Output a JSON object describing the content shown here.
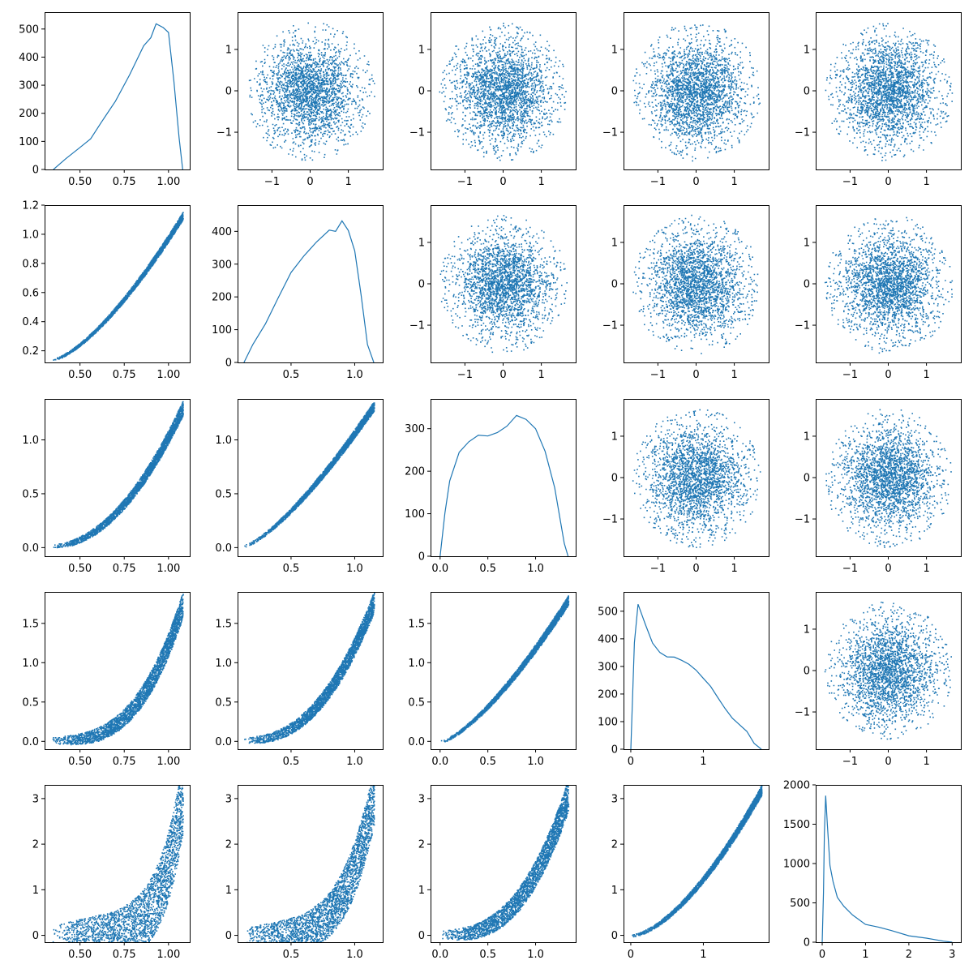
{
  "figure": {
    "layout": "5x5 pair plot grid (lower triangle: scatter, diagonal: histogram, upper triangle: scatter)",
    "color": "#1f77b4"
  },
  "chart_data": [
    {
      "name": "panel-r1c1",
      "type": "line",
      "role": "histogram",
      "xlim": [
        0.3,
        1.12
      ],
      "ylim": [
        0,
        560
      ],
      "xticks": [
        0.5,
        0.75,
        1.0
      ],
      "xtick_labels": [
        "0.50",
        "0.75",
        "1.00"
      ],
      "yticks": [
        0,
        100,
        200,
        300,
        400,
        500
      ],
      "ytick_labels": [
        "0",
        "100",
        "200",
        "300",
        "400",
        "500"
      ],
      "x": [
        0.35,
        0.42,
        0.5,
        0.56,
        0.62,
        0.7,
        0.78,
        0.86,
        0.9,
        0.93,
        0.97,
        1.0,
        1.03,
        1.06,
        1.08
      ],
      "y": [
        0,
        30,
        70,
        110,
        170,
        250,
        330,
        440,
        470,
        520,
        510,
        480,
        320,
        120,
        0
      ]
    },
    {
      "name": "panel-r1c2",
      "type": "scatter",
      "role": "disk",
      "xlim": [
        -1.9,
        1.9
      ],
      "ylim": [
        -1.9,
        1.9
      ],
      "xticks": [
        -1,
        0,
        1
      ],
      "xtick_labels": [
        "−1",
        "0",
        "1"
      ],
      "yticks": [
        -1,
        0,
        1
      ],
      "ytick_labels": [
        "−1",
        "0",
        "1"
      ]
    },
    {
      "name": "panel-r1c3",
      "type": "scatter",
      "role": "disk",
      "xlim": [
        -1.9,
        1.9
      ],
      "ylim": [
        -1.9,
        1.9
      ],
      "xticks": [
        -1,
        0,
        1
      ],
      "xtick_labels": [
        "−1",
        "0",
        "1"
      ],
      "yticks": [
        -1,
        0,
        1
      ],
      "ytick_labels": [
        "−1",
        "0",
        "1"
      ]
    },
    {
      "name": "panel-r1c4",
      "type": "scatter",
      "role": "disk",
      "xlim": [
        -1.9,
        1.9
      ],
      "ylim": [
        -1.9,
        1.9
      ],
      "xticks": [
        -1,
        0,
        1
      ],
      "xtick_labels": [
        "−1",
        "0",
        "1"
      ],
      "yticks": [
        -1,
        0,
        1
      ],
      "ytick_labels": [
        "−1",
        "0",
        "1"
      ]
    },
    {
      "name": "panel-r1c5",
      "type": "scatter",
      "role": "disk",
      "xlim": [
        -1.9,
        1.9
      ],
      "ylim": [
        -1.9,
        1.9
      ],
      "xticks": [
        -1,
        0,
        1
      ],
      "xtick_labels": [
        "−1",
        "0",
        "1"
      ],
      "yticks": [
        -1,
        0,
        1
      ],
      "ytick_labels": [
        "−1",
        "0",
        "1"
      ]
    },
    {
      "name": "panel-r2c1",
      "type": "scatter",
      "role": "band",
      "xlim": [
        0.3,
        1.12
      ],
      "ylim": [
        0.12,
        1.2
      ],
      "xticks": [
        0.5,
        0.75,
        1.0
      ],
      "xtick_labels": [
        "0.50",
        "0.75",
        "1.00"
      ],
      "yticks": [
        0.2,
        0.4,
        0.6,
        0.8,
        1.0,
        1.2
      ],
      "ytick_labels": [
        "0.2",
        "0.4",
        "0.6",
        "0.8",
        "1.0",
        "1.2"
      ],
      "band": {
        "x0": 0.34,
        "x1": 1.08,
        "y0": 0.14,
        "y1": 1.13,
        "p": 1.45,
        "w": 0.07
      }
    },
    {
      "name": "panel-r2c2",
      "type": "line",
      "role": "histogram",
      "xlim": [
        0.08,
        1.22
      ],
      "ylim": [
        0,
        480
      ],
      "xticks": [
        0.5,
        1.0
      ],
      "xtick_labels": [
        "0.5",
        "1.0"
      ],
      "yticks": [
        0,
        100,
        200,
        300,
        400
      ],
      "ytick_labels": [
        "0",
        "100",
        "200",
        "300",
        "400"
      ],
      "x": [
        0.13,
        0.2,
        0.3,
        0.4,
        0.5,
        0.6,
        0.7,
        0.8,
        0.85,
        0.9,
        0.95,
        1.0,
        1.05,
        1.1,
        1.15
      ],
      "y": [
        0,
        50,
        120,
        200,
        270,
        320,
        370,
        410,
        400,
        430,
        400,
        340,
        200,
        60,
        0
      ]
    },
    {
      "name": "panel-r2c3",
      "type": "scatter",
      "role": "disk",
      "xlim": [
        -1.9,
        1.9
      ],
      "ylim": [
        -1.9,
        1.9
      ],
      "xticks": [
        -1,
        0,
        1
      ],
      "xtick_labels": [
        "−1",
        "0",
        "1"
      ],
      "yticks": [
        -1,
        0,
        1
      ],
      "ytick_labels": [
        "−1",
        "0",
        "1"
      ]
    },
    {
      "name": "panel-r2c4",
      "type": "scatter",
      "role": "disk",
      "xlim": [
        -1.9,
        1.9
      ],
      "ylim": [
        -1.9,
        1.9
      ],
      "xticks": [
        -1,
        0,
        1
      ],
      "xtick_labels": [
        "−1",
        "0",
        "1"
      ],
      "yticks": [
        -1,
        0,
        1
      ],
      "ytick_labels": [
        "−1",
        "0",
        "1"
      ]
    },
    {
      "name": "panel-r2c5",
      "type": "scatter",
      "role": "disk",
      "xlim": [
        -1.9,
        1.9
      ],
      "ylim": [
        -1.9,
        1.9
      ],
      "xticks": [
        -1,
        0,
        1
      ],
      "xtick_labels": [
        "−1",
        "0",
        "1"
      ],
      "yticks": [
        -1,
        0,
        1
      ],
      "ytick_labels": [
        "−1",
        "0",
        "1"
      ]
    },
    {
      "name": "panel-r3c1",
      "type": "scatter",
      "role": "band",
      "xlim": [
        0.3,
        1.12
      ],
      "ylim": [
        -0.08,
        1.38
      ],
      "xticks": [
        0.5,
        0.75,
        1.0
      ],
      "xtick_labels": [
        "0.50",
        "0.75",
        "1.00"
      ],
      "yticks": [
        0,
        0.5,
        1.0
      ],
      "ytick_labels": [
        "0.0",
        "0.5",
        "1.0"
      ],
      "band": {
        "x0": 0.34,
        "x1": 1.08,
        "y0": 0.02,
        "y1": 1.3,
        "p": 2.0,
        "w": 0.14
      }
    },
    {
      "name": "panel-r3c2",
      "type": "scatter",
      "role": "band",
      "xlim": [
        0.08,
        1.22
      ],
      "ylim": [
        -0.08,
        1.38
      ],
      "xticks": [
        0.5,
        1.0
      ],
      "xtick_labels": [
        "0.5",
        "1.0"
      ],
      "yticks": [
        0,
        0.5,
        1.0
      ],
      "ytick_labels": [
        "0.0",
        "0.5",
        "1.0"
      ],
      "band": {
        "x0": 0.13,
        "x1": 1.15,
        "y0": 0.02,
        "y1": 1.32,
        "p": 1.35,
        "w": 0.09
      }
    },
    {
      "name": "panel-r3c3",
      "type": "line",
      "role": "histogram",
      "xlim": [
        -0.1,
        1.42
      ],
      "ylim": [
        0,
        370
      ],
      "xticks": [
        0,
        0.5,
        1.0
      ],
      "xtick_labels": [
        "0.0",
        "0.5",
        "1.0"
      ],
      "yticks": [
        0,
        100,
        200,
        300
      ],
      "ytick_labels": [
        "0",
        "100",
        "200",
        "300"
      ],
      "x": [
        0.0,
        0.05,
        0.1,
        0.2,
        0.3,
        0.4,
        0.5,
        0.6,
        0.7,
        0.8,
        0.9,
        1.0,
        1.1,
        1.2,
        1.3,
        1.34
      ],
      "y": [
        0,
        100,
        180,
        240,
        270,
        280,
        285,
        290,
        310,
        330,
        320,
        300,
        250,
        160,
        30,
        0
      ]
    },
    {
      "name": "panel-r3c4",
      "type": "scatter",
      "role": "disk",
      "xlim": [
        -1.9,
        1.9
      ],
      "ylim": [
        -1.9,
        1.9
      ],
      "xticks": [
        -1,
        0,
        1
      ],
      "xtick_labels": [
        "−1",
        "0",
        "1"
      ],
      "yticks": [
        -1,
        0,
        1
      ],
      "ytick_labels": [
        "−1",
        "0",
        "1"
      ]
    },
    {
      "name": "panel-r3c5",
      "type": "scatter",
      "role": "disk",
      "xlim": [
        -1.9,
        1.9
      ],
      "ylim": [
        -1.9,
        1.9
      ],
      "xticks": [
        -1,
        0,
        1
      ],
      "xtick_labels": [
        "−1",
        "0",
        "1"
      ],
      "yticks": [
        -1,
        0,
        1
      ],
      "ytick_labels": [
        "−1",
        "0",
        "1"
      ]
    },
    {
      "name": "panel-r4c1",
      "type": "scatter",
      "role": "band",
      "xlim": [
        0.3,
        1.12
      ],
      "ylim": [
        -0.1,
        1.9
      ],
      "xticks": [
        0.5,
        0.75,
        1.0
      ],
      "xtick_labels": [
        "0.50",
        "0.75",
        "1.00"
      ],
      "yticks": [
        0,
        0.5,
        1.0,
        1.5
      ],
      "ytick_labels": [
        "0.0",
        "0.5",
        "1.0",
        "1.5"
      ],
      "band": {
        "x0": 0.34,
        "x1": 1.08,
        "y0": 0.02,
        "y1": 1.75,
        "p": 3.0,
        "w": 0.25
      }
    },
    {
      "name": "panel-r4c2",
      "type": "scatter",
      "role": "band",
      "xlim": [
        0.08,
        1.22
      ],
      "ylim": [
        -0.1,
        1.9
      ],
      "xticks": [
        0.5,
        1.0
      ],
      "xtick_labels": [
        "0.5",
        "1.0"
      ],
      "yticks": [
        0,
        0.5,
        1.0,
        1.5
      ],
      "ytick_labels": [
        "0.0",
        "0.5",
        "1.0",
        "1.5"
      ],
      "band": {
        "x0": 0.13,
        "x1": 1.15,
        "y0": 0.02,
        "y1": 1.78,
        "p": 2.4,
        "w": 0.2
      }
    },
    {
      "name": "panel-r4c3",
      "type": "scatter",
      "role": "band",
      "xlim": [
        -0.1,
        1.42
      ],
      "ylim": [
        -0.1,
        1.9
      ],
      "xticks": [
        0,
        0.5,
        1.0
      ],
      "xtick_labels": [
        "0.0",
        "0.5",
        "1.0"
      ],
      "yticks": [
        0,
        0.5,
        1.0,
        1.5
      ],
      "ytick_labels": [
        "0.0",
        "0.5",
        "1.0",
        "1.5"
      ],
      "band": {
        "x0": 0.0,
        "x1": 1.34,
        "y0": 0.0,
        "y1": 1.8,
        "p": 1.4,
        "w": 0.09
      }
    },
    {
      "name": "panel-r4c4",
      "type": "line",
      "role": "histogram",
      "xlim": [
        -0.1,
        1.9
      ],
      "ylim": [
        0,
        570
      ],
      "xticks": [
        0,
        1
      ],
      "xtick_labels": [
        "0",
        "1"
      ],
      "yticks": [
        0,
        100,
        200,
        300,
        400,
        500
      ],
      "ytick_labels": [
        "0",
        "100",
        "200",
        "300",
        "400",
        "500"
      ],
      "x": [
        0.0,
        0.05,
        0.1,
        0.2,
        0.3,
        0.4,
        0.5,
        0.6,
        0.7,
        0.8,
        0.9,
        1.0,
        1.1,
        1.2,
        1.3,
        1.4,
        1.5,
        1.6,
        1.7,
        1.8
      ],
      "y": [
        0,
        380,
        530,
        460,
        380,
        350,
        340,
        330,
        320,
        300,
        280,
        250,
        220,
        190,
        150,
        120,
        90,
        60,
        20,
        0
      ]
    },
    {
      "name": "panel-r4c5",
      "type": "scatter",
      "role": "disk",
      "xlim": [
        -1.9,
        1.9
      ],
      "ylim": [
        -1.9,
        1.9
      ],
      "xticks": [
        -1,
        0,
        1
      ],
      "xtick_labels": [
        "−1",
        "0",
        "1"
      ],
      "yticks": [
        -1,
        0,
        1
      ],
      "ytick_labels": [
        "−1",
        "0",
        "1"
      ]
    },
    {
      "name": "panel-r5c1",
      "type": "scatter",
      "role": "band",
      "xlim": [
        0.3,
        1.12
      ],
      "ylim": [
        -0.15,
        3.3
      ],
      "xticks": [
        0.5,
        0.75,
        1.0
      ],
      "xtick_labels": [
        "0.50",
        "0.75",
        "1.00"
      ],
      "yticks": [
        0,
        1,
        2,
        3
      ],
      "ytick_labels": [
        "0",
        "1",
        "2",
        "3"
      ],
      "band": {
        "x0": 0.34,
        "x1": 1.08,
        "y0": 0.02,
        "y1": 3.1,
        "p": 6.0,
        "w": 0.7
      }
    },
    {
      "name": "panel-r5c2",
      "type": "scatter",
      "role": "band",
      "xlim": [
        0.08,
        1.22
      ],
      "ylim": [
        -0.15,
        3.3
      ],
      "xticks": [
        0.5,
        1.0
      ],
      "xtick_labels": [
        "0.5",
        "1.0"
      ],
      "yticks": [
        0,
        1,
        2,
        3
      ],
      "ytick_labels": [
        "0",
        "1",
        "2",
        "3"
      ],
      "band": {
        "x0": 0.13,
        "x1": 1.15,
        "y0": 0.02,
        "y1": 3.1,
        "p": 4.5,
        "w": 0.55
      }
    },
    {
      "name": "panel-r5c3",
      "type": "scatter",
      "role": "band",
      "xlim": [
        -0.1,
        1.42
      ],
      "ylim": [
        -0.15,
        3.3
      ],
      "xticks": [
        0,
        0.5,
        1.0
      ],
      "xtick_labels": [
        "0.0",
        "0.5",
        "1.0"
      ],
      "yticks": [
        0,
        1,
        2,
        3
      ],
      "ytick_labels": [
        "0",
        "1",
        "2",
        "3"
      ],
      "band": {
        "x0": 0.0,
        "x1": 1.34,
        "y0": 0.02,
        "y1": 3.1,
        "p": 2.8,
        "w": 0.3
      }
    },
    {
      "name": "panel-r5c4",
      "type": "scatter",
      "role": "band",
      "xlim": [
        -0.1,
        1.9
      ],
      "ylim": [
        -0.15,
        3.3
      ],
      "xticks": [
        0,
        1
      ],
      "xtick_labels": [
        "0",
        "1"
      ],
      "yticks": [
        0,
        1,
        2,
        3
      ],
      "ytick_labels": [
        "0",
        "1",
        "2",
        "3"
      ],
      "band": {
        "x0": 0.0,
        "x1": 1.8,
        "y0": 0.0,
        "y1": 3.2,
        "p": 1.6,
        "w": 0.09
      }
    },
    {
      "name": "panel-r5c5",
      "type": "line",
      "role": "histogram",
      "xlim": [
        -0.15,
        3.2
      ],
      "ylim": [
        0,
        2000
      ],
      "xticks": [
        0,
        1,
        2,
        3
      ],
      "xtick_labels": [
        "0",
        "1",
        "2",
        "3"
      ],
      "yticks": [
        0,
        500,
        1000,
        1500,
        2000
      ],
      "ytick_labels": [
        "0",
        "500",
        "1000",
        "1500",
        "2000"
      ],
      "x": [
        0.0,
        0.03,
        0.05,
        0.08,
        0.12,
        0.18,
        0.25,
        0.35,
        0.5,
        0.7,
        1.0,
        1.3,
        1.6,
        2.0,
        2.4,
        2.8,
        3.0
      ],
      "y": [
        0,
        600,
        1400,
        1880,
        1500,
        1000,
        750,
        600,
        450,
        350,
        240,
        170,
        120,
        80,
        40,
        10,
        0
      ]
    }
  ]
}
